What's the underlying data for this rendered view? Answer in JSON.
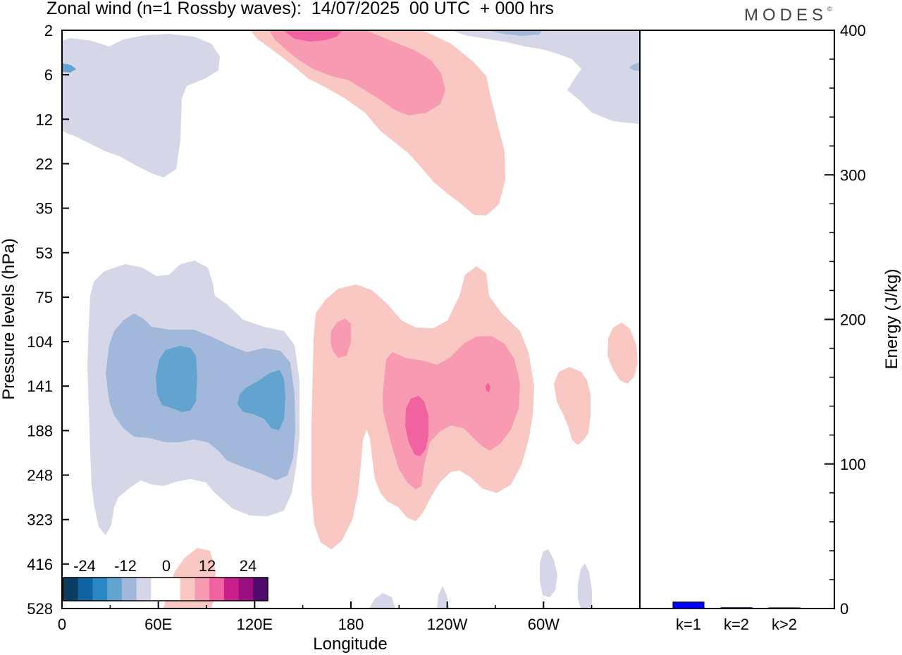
{
  "header": {
    "title": "Zonal wind (n=1 Rossby waves):  14/07/2025  00 UTC  + 000 hrs",
    "logo_text": "MODES",
    "logo_mark": "©"
  },
  "chart_data": [
    {
      "type": "contour",
      "title": "Zonal wind (n=1 Rossby waves):  14/07/2025  00 UTC  + 000 hrs",
      "xlabel": "Longitude",
      "ylabel": "Pressure levels (hPa)",
      "x_ticks": [
        "0",
        "60E",
        "120E",
        "180",
        "120W",
        "60W"
      ],
      "y_ticks": [
        "2",
        "6",
        "12",
        "22",
        "35",
        "53",
        "75",
        "104",
        "141",
        "188",
        "248",
        "323",
        "416",
        "528"
      ],
      "colorbar": {
        "tick_labels": [
          "-24",
          "-12",
          "0",
          "12",
          "24"
        ],
        "colors": [
          "#0b3d63",
          "#0f63a0",
          "#2a87c5",
          "#62a3cf",
          "#a2b8da",
          "#d5d6e7",
          "#ffffff",
          "#ffffff",
          "#f9c8c2",
          "#f89ab2",
          "#f062a0",
          "#c81f8a",
          "#9a0f80",
          "#4d0a6b"
        ]
      },
      "regions": [
        {
          "level": "-3",
          "color": "#d5d6e7",
          "area": "upper left, longitudes 0 to 60E, levels 2 to 22 hPa"
        },
        {
          "level": "-3",
          "color": "#d5d6e7",
          "area": "upper right, east of 120W, levels 2 to 12 hPa"
        },
        {
          "level": "-3",
          "color": "#d5d6e7",
          "area": "lower left, longitudes 15E to 150E, levels 60 to 330 hPa"
        },
        {
          "level": "-6",
          "color": "#a2b8da",
          "area": "lower left, longitudes 25E to 145E, levels 95 to 250 hPa"
        },
        {
          "level": "-9",
          "color": "#62a3cf",
          "area": "centres near 70E and 130E, about 141 hPa"
        },
        {
          "level": "3",
          "color": "#f9c8c2",
          "area": "upper centre, 130E to 80W, levels 2 to 35 hPa"
        },
        {
          "level": "6",
          "color": "#f89ab2",
          "area": "upper centre, 140E to 100W, levels 2 to 10 hPa"
        },
        {
          "level": "9",
          "color": "#f062a0",
          "area": "near 160E to 180, 2 hPa"
        },
        {
          "level": "3",
          "color": "#f9c8c2",
          "area": "centre, 150E to 85W, levels 70 to 400 hPa"
        },
        {
          "level": "6",
          "color": "#f89ab2",
          "area": "centre, 160W to 105W, levels 100 to 250 hPa"
        },
        {
          "level": "9",
          "color": "#f062a0",
          "area": "near 130W, 150 to 210 hPa"
        },
        {
          "level": "3",
          "color": "#f9c8c2",
          "area": "small patches near 70W and 40W, 100 to 200 hPa"
        }
      ]
    },
    {
      "type": "bar",
      "categories": [
        "k=1",
        "k=2",
        "k>2"
      ],
      "values": [
        4.5,
        0.6,
        0.5
      ],
      "ylabel": "Energy (J/kg)",
      "ylim": [
        0,
        400
      ],
      "y_ticks": [
        "0",
        "100",
        "200",
        "300",
        "400"
      ],
      "bar_color": "#0000ff"
    }
  ]
}
